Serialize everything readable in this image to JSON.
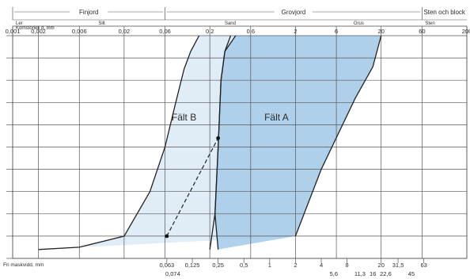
{
  "chart_data": {
    "type": "area",
    "axes": {
      "top_label": "Kornstorlek d, mm",
      "bottom_label": "Fri maskvidd, mm",
      "top_ticks": [
        "0,001",
        "0,002",
        "0,006",
        "0,02",
        "0,06",
        "0,2",
        "0,6",
        "2",
        "6",
        "20",
        "60",
        "200"
      ],
      "top_tick_values": [
        0.001,
        0.002,
        0.006,
        0.02,
        0.06,
        0.2,
        0.6,
        2,
        6,
        20,
        60,
        200
      ],
      "bottom_ticks_upper": [
        "0,063",
        "0,125",
        "0,25",
        "0,5",
        "1",
        "2",
        "4",
        "8",
        "20",
        "31,5",
        "63"
      ],
      "bottom_tick_upper_values": [
        0.063,
        0.125,
        0.25,
        0.5,
        1,
        2,
        4,
        8,
        20,
        31.5,
        63
      ],
      "bottom_ticks_lower": [
        "0,074",
        "5,6",
        "11,3",
        "16",
        "22,6",
        "45"
      ],
      "bottom_tick_lower_values": [
        0.074,
        5.6,
        11.3,
        16,
        22.6,
        45
      ],
      "x_scale": "log",
      "x_range": [
        0.001,
        200
      ],
      "y_range": [
        0,
        100
      ],
      "y_tick_step": 10,
      "grid": true
    },
    "categories_row": {
      "main": [
        {
          "label": "Finjord",
          "from": 0.001,
          "to": 0.06
        },
        {
          "label": "Grovjord",
          "from": 0.06,
          "to": 60
        },
        {
          "label": "Sten och block",
          "from": 60,
          "to": 200
        }
      ],
      "sub": [
        {
          "label": "Ler",
          "from": 0.001,
          "to": 0.002
        },
        {
          "label": "Silt",
          "from": 0.002,
          "to": 0.06
        },
        {
          "label": "Sand",
          "from": 0.06,
          "to": 2
        },
        {
          "label": "Grus",
          "from": 2,
          "to": 60
        },
        {
          "label": "Sten",
          "from": 60,
          "to": 200
        }
      ]
    },
    "series": [
      {
        "name": "Fält B",
        "color": "#dbe9f5",
        "left_boundary": [
          [
            0.002,
            4
          ],
          [
            0.006,
            5
          ],
          [
            0.02,
            10
          ],
          [
            0.04,
            30
          ],
          [
            0.06,
            50
          ],
          [
            0.08,
            70
          ],
          [
            0.1,
            85
          ],
          [
            0.12,
            93
          ],
          [
            0.15,
            100
          ]
        ],
        "right_boundary": [
          [
            0.2,
            4
          ],
          [
            0.23,
            20
          ],
          [
            0.25,
            50
          ],
          [
            0.27,
            80
          ],
          [
            0.3,
            93
          ],
          [
            0.35,
            100
          ]
        ]
      },
      {
        "name": "Fält A",
        "color": "#a9cdea",
        "left_boundary": [
          [
            0.25,
            4
          ],
          [
            0.23,
            20
          ],
          [
            0.25,
            50
          ],
          [
            0.27,
            80
          ],
          [
            0.3,
            93
          ],
          [
            0.4,
            100
          ]
        ],
        "right_boundary": [
          [
            2,
            10
          ],
          [
            4,
            40
          ],
          [
            10,
            72
          ],
          [
            16,
            86
          ],
          [
            20,
            100
          ]
        ],
        "bottom_boundary": [
          [
            0.25,
            4
          ],
          [
            2,
            10
          ]
        ]
      }
    ],
    "connector": {
      "style": "dashed",
      "from": [
        0.063,
        10
      ],
      "to": [
        0.25,
        54
      ]
    }
  }
}
